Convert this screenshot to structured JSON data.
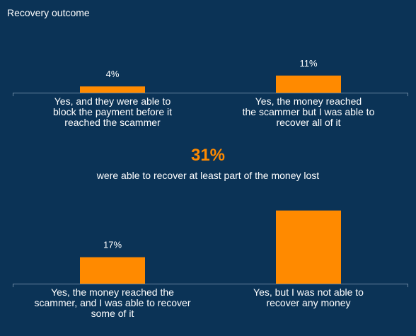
{
  "title": "Recovery outcome",
  "highlight": {
    "value": "31%",
    "caption": "were able to recover at least part of the money lost"
  },
  "colors": {
    "background": "#0b3356",
    "bar": "#ff8a00",
    "axis": "#6a86a0",
    "text": "#ffffff",
    "accent": "#ff8a00"
  },
  "chart_data": {
    "type": "bar",
    "title": "Recovery outcome",
    "unit": "%",
    "grid": false,
    "categories": [
      "Yes, and they were able to block the payment before it reached the scammer",
      "Yes, the money reached the scammer but I was able to recover all of it",
      "Yes, the money reached the scammer, and I was able to recover some of it",
      "Yes, but I was not able to recover any money"
    ],
    "category_lines": [
      [
        "Yes, and they were able to",
        "block the payment before it",
        "reached the scammer"
      ],
      [
        "Yes, the money reached",
        "the scammer but I was able to",
        "recover all of it"
      ],
      [
        "Yes, the money reached the",
        "scammer, and I was able to recover",
        "some of it"
      ],
      [
        "Yes, but I was not able to",
        "recover any money"
      ]
    ],
    "values": [
      4,
      11,
      17,
      47
    ],
    "value_labels": [
      "4%",
      "11%",
      "17%",
      ""
    ]
  }
}
